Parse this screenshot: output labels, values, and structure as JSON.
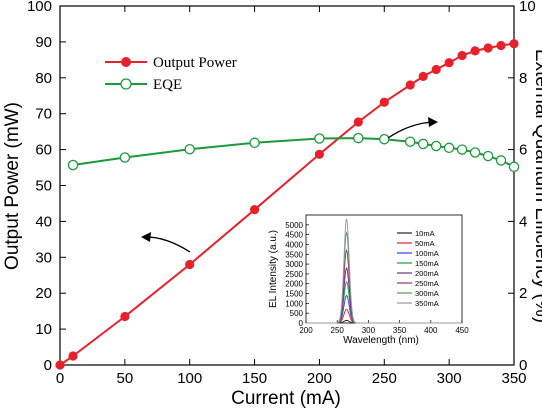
{
  "chart_data": [
    {
      "type": "line",
      "xlabel": "Current (mA)",
      "ylabel": "Output Power (mW)",
      "y2label": "External Quantum Efficiency (%)",
      "xlim": [
        0,
        350
      ],
      "ylim": [
        0,
        100
      ],
      "y2lim": [
        0,
        10
      ],
      "x_ticks": [
        0,
        50,
        100,
        150,
        200,
        250,
        300,
        350
      ],
      "x_tick_labels": [
        "0",
        "50",
        "100",
        "150",
        "200",
        "250",
        "300",
        "350"
      ],
      "y_ticks": [
        0,
        10,
        20,
        30,
        40,
        50,
        60,
        70,
        80,
        90,
        100
      ],
      "y_tick_labels": [
        "0",
        "10",
        "20",
        "30",
        "40",
        "50",
        "60",
        "70",
        "80",
        "90",
        "100"
      ],
      "y2_ticks": [
        0,
        2,
        4,
        6,
        8,
        10
      ],
      "y2_tick_labels": [
        "0",
        "2",
        "4",
        "6",
        "8",
        "10"
      ],
      "legend_position": "top-left",
      "grid": false,
      "series": [
        {
          "name": "Output Power",
          "axis": "left",
          "color": "#e8202a",
          "marker": "filled-circle",
          "points": [
            [
              0,
              0
            ],
            [
              10,
              2.5
            ],
            [
              50,
              13.5
            ],
            [
              100,
              28
            ],
            [
              150,
              43.3
            ],
            [
              200,
              58.7
            ],
            [
              230,
              67.7
            ],
            [
              250,
              73.2
            ],
            [
              270,
              78
            ],
            [
              280,
              80.4
            ],
            [
              290,
              82.3
            ],
            [
              300,
              84.2
            ],
            [
              310,
              86.2
            ],
            [
              320,
              87.5
            ],
            [
              330,
              88.3
            ],
            [
              340,
              89
            ],
            [
              350,
              89.5
            ],
            [
              365,
              90
            ]
          ],
          "marker_x": [
            0,
            10,
            50,
            100,
            150,
            200,
            230,
            250,
            270,
            280,
            290,
            300,
            310,
            320,
            330,
            340,
            350
          ]
        },
        {
          "name": "EQE",
          "axis": "right",
          "color": "#1a9a3c",
          "marker": "open-circle",
          "points": [
            [
              10,
              5.57
            ],
            [
              50,
              5.78
            ],
            [
              100,
              6.01
            ],
            [
              150,
              6.19
            ],
            [
              200,
              6.31
            ],
            [
              230,
              6.32
            ],
            [
              250,
              6.29
            ],
            [
              270,
              6.22
            ],
            [
              280,
              6.16
            ],
            [
              290,
              6.1
            ],
            [
              300,
              6.05
            ],
            [
              310,
              6.0
            ],
            [
              320,
              5.92
            ],
            [
              330,
              5.82
            ],
            [
              340,
              5.7
            ],
            [
              350,
              5.52
            ],
            [
              365,
              5.3
            ]
          ],
          "marker_x": [
            10,
            50,
            100,
            150,
            200,
            230,
            250,
            270,
            280,
            290,
            300,
            310,
            320,
            330,
            340,
            350
          ]
        }
      ]
    },
    {
      "type": "line",
      "xlabel": "Wavelength (nm)",
      "ylabel": "EL Intensity (a.u.)",
      "xlim": [
        200,
        450
      ],
      "ylim": [
        0,
        5500
      ],
      "x_ticks": [
        200,
        250,
        300,
        350,
        400,
        450
      ],
      "x_tick_labels": [
        "200",
        "250",
        "300",
        "350",
        "400",
        "450"
      ],
      "y_ticks": [
        0,
        500,
        1000,
        1500,
        2000,
        2500,
        3000,
        3500,
        4000,
        4500,
        5000
      ],
      "y_tick_labels": [
        "0",
        "500",
        "1000",
        "1500",
        "2000",
        "2500",
        "3000",
        "3500",
        "4000",
        "4500",
        "5000"
      ],
      "peak_wavelength": 265,
      "fwhm": 10,
      "legend_position": "right",
      "series": [
        {
          "name": "10mA",
          "color": "#222222",
          "peak": 130
        },
        {
          "name": "50mA",
          "color": "#e8202a",
          "peak": 700
        },
        {
          "name": "100mA",
          "color": "#3a3aff",
          "peak": 1400
        },
        {
          "name": "150mA",
          "color": "#1aa04a",
          "peak": 2100
        },
        {
          "name": "200mA",
          "color": "#7a2a8a",
          "peak": 2800
        },
        {
          "name": "250mA",
          "color": "#a0306a",
          "peak": 3700
        },
        {
          "name": "300mA",
          "color": "#4aa04a",
          "peak": 4600
        },
        {
          "name": "350mA",
          "color": "#999999",
          "peak": 5300
        }
      ]
    }
  ]
}
